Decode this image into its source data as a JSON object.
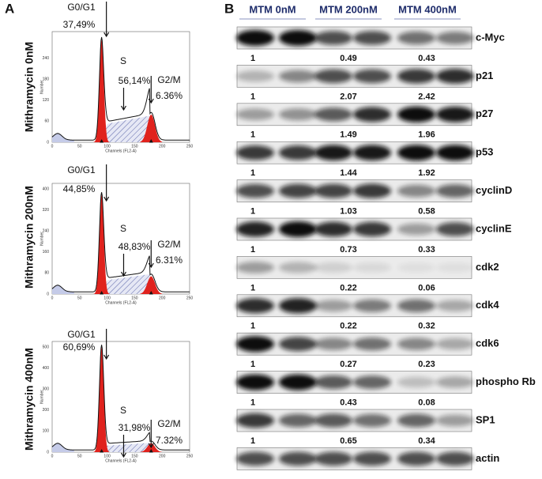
{
  "panel_a": {
    "label": "A",
    "axis_x_label": "Channels (FL2-A)",
    "axis_y_label": "Number",
    "xticks": [
      "0",
      "50",
      "100",
      "150",
      "200",
      "250"
    ],
    "plots": [
      {
        "condition": "Mithramycin 0nM",
        "yticks": [
          "0",
          "60",
          "120",
          "180",
          "240"
        ],
        "g0g1_label": "G0/G1",
        "g0g1": "37,49%",
        "s_label": "S",
        "s": "56,14%",
        "g2m_label": "G2/M",
        "g2m": "6.36%"
      },
      {
        "condition": "Mithramycin 200nM",
        "yticks": [
          "0",
          "80",
          "160",
          "240",
          "320",
          "400"
        ],
        "g0g1_label": "G0/G1",
        "g0g1": "44,85%",
        "s_label": "S",
        "s": "48,83%",
        "g2m_label": "G2/M",
        "g2m": "6.31%"
      },
      {
        "condition": "Mithramycin 400nM",
        "yticks": [
          "0",
          "100",
          "200",
          "300",
          "400",
          "500"
        ],
        "g0g1_label": "G0/G1",
        "g0g1": "60,69%",
        "s_label": "S",
        "s": "31,98%",
        "g2m_label": "G2/M",
        "g2m": "7.32%"
      }
    ]
  },
  "panel_b": {
    "label": "B",
    "groups": [
      "MTM 0nM",
      "MTM 200nM",
      "MTM 400nM"
    ],
    "blots": [
      {
        "protein": "c-Myc",
        "ratios": [
          "1",
          "0.49",
          "0.43"
        ]
      },
      {
        "protein": "p21",
        "ratios": [
          "1",
          "2.07",
          "2.42"
        ]
      },
      {
        "protein": "p27",
        "ratios": [
          "1",
          "1.49",
          "1.96"
        ]
      },
      {
        "protein": "p53",
        "ratios": [
          "1",
          "1.44",
          "1.92"
        ]
      },
      {
        "protein": "cyclinD",
        "ratios": [
          "1",
          "1.03",
          "0.58"
        ]
      },
      {
        "protein": "cyclinE",
        "ratios": [
          "1",
          "0.73",
          "0.33"
        ]
      },
      {
        "protein": "cdk2",
        "ratios": [
          "1",
          "0.22",
          "0.06"
        ]
      },
      {
        "protein": "cdk4",
        "ratios": [
          "1",
          "0.22",
          "0.32"
        ]
      },
      {
        "protein": "cdk6",
        "ratios": [
          "1",
          "0.27",
          "0.23"
        ]
      },
      {
        "protein": "phospho Rb",
        "ratios": [
          "1",
          "0.43",
          "0.08"
        ]
      },
      {
        "protein": "SP1",
        "ratios": [
          "1",
          "0.65",
          "0.34"
        ]
      },
      {
        "protein": "actin"
      }
    ]
  }
}
